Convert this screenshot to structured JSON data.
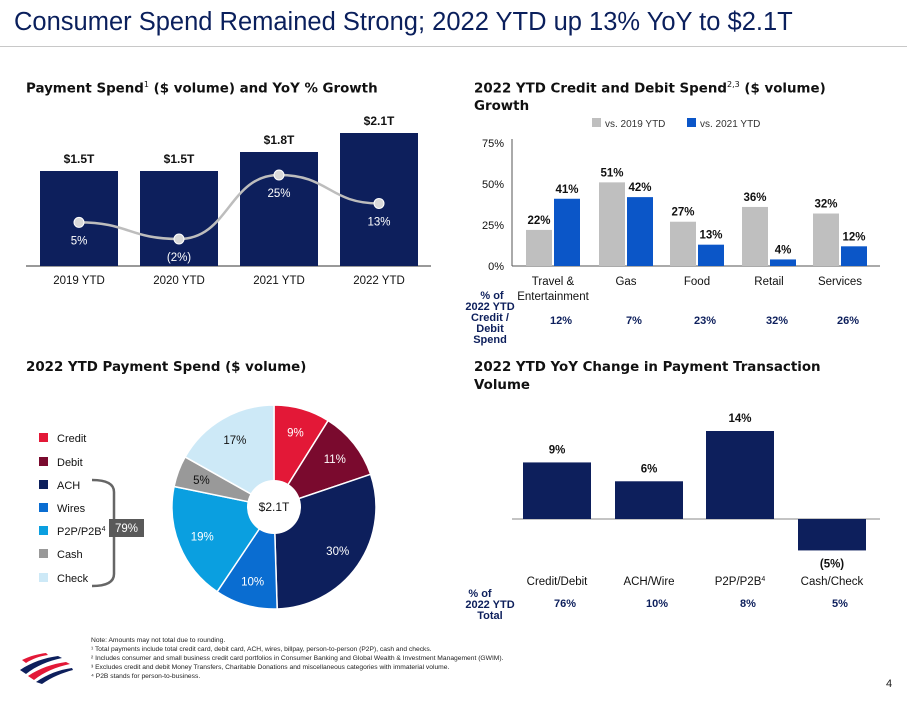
{
  "title": "Consumer Spend Remained Strong; 2022 YTD up 13% YoY to $2.1T",
  "page_number": "4",
  "colors": {
    "navy": "#0d1f5c",
    "blue": "#0b56c8",
    "gray": "#bfbfbf",
    "line": "#bdbdbd",
    "credit": "#e31837",
    "debit": "#7a0a2e",
    "ach": "#0d1f5c",
    "wires": "#0a6dd1",
    "p2p": "#0a9fe0",
    "cash": "#999999",
    "check": "#cde9f7"
  },
  "panel1": {
    "title_main": "Payment Spend",
    "title_sup": "1",
    "title_rest": " ($ volume) and YoY % Growth"
  },
  "panel2": {
    "title_line1": "2022 YTD Credit and Debit Spend",
    "title_sup": "2,3",
    "title_rest": " ($ volume)",
    "title_line2": "Growth",
    "share_label_lines": [
      "% of",
      "2022 YTD",
      "Credit /",
      "Debit",
      "Spend"
    ]
  },
  "panel3": {
    "title": "2022 YTD Payment Spend ($ volume)",
    "center_label": "$2.1T",
    "bracket_label": "79%"
  },
  "panel4": {
    "title_line1": "2022 YTD YoY Change in Payment Transaction",
    "title_line2": "Volume",
    "share_label_lines": [
      "% of",
      "2022 YTD",
      "Total"
    ]
  },
  "footnotes": [
    "Note: Amounts may not total due to rounding.",
    "¹ Total payments include total credit card, debit card, ACH, wires, billpay, person-to-person (P2P), cash and checks.",
    "² Includes consumer and small business credit card portfolios in Consumer Banking and Global Wealth & Investment Management (GWIM).",
    "³ Excludes credit and debit Money Transfers, Charitable Donations and miscellaneous categories with immaterial volume.",
    "⁴ P2B stands for person-to-business."
  ],
  "chart_data": [
    {
      "type": "bar",
      "categories": [
        "2019 YTD",
        "2020 YTD",
        "2021 YTD",
        "2022 YTD"
      ],
      "series": [
        {
          "values": [
            1.5,
            1.5,
            1.8,
            2.1
          ],
          "labels": [
            "$1.5T",
            "$1.5T",
            "$1.8T",
            "$2.1T"
          ]
        },
        {
          "type": "line",
          "values": [
            5,
            -2,
            25,
            13
          ],
          "labels": [
            "5%",
            "(2%)",
            "25%",
            "13%"
          ]
        }
      ],
      "ylim": [
        0,
        2.1
      ]
    },
    {
      "type": "bar",
      "categories": [
        "Travel & Entertainment",
        "Gas",
        "Food",
        "Retail",
        "Services"
      ],
      "series": [
        {
          "name": "vs. 2019 YTD",
          "values": [
            22,
            51,
            27,
            36,
            32
          ],
          "labels": [
            "22%",
            "51%",
            "27%",
            "36%",
            "32%"
          ]
        },
        {
          "name": "vs. 2021 YTD",
          "values": [
            41,
            42,
            13,
            4,
            12
          ],
          "labels": [
            "41%",
            "42%",
            "13%",
            "4%",
            "12%"
          ]
        }
      ],
      "yticks": [
        "0%",
        "25%",
        "50%",
        "75%"
      ],
      "ylim": [
        0,
        75
      ],
      "share": [
        "12%",
        "7%",
        "23%",
        "32%",
        "26%"
      ]
    },
    {
      "type": "pie",
      "categories": [
        "Credit",
        "Debit",
        "ACH",
        "Wires",
        "P2P/P2B",
        "Cash",
        "Check"
      ],
      "category_sup": [
        "",
        "",
        "",
        "",
        "4",
        "",
        ""
      ],
      "values": [
        9,
        11,
        30,
        10,
        19,
        5,
        17
      ],
      "labels": [
        "9%",
        "11%",
        "30%",
        "10%",
        "19%",
        "5%",
        "17%"
      ],
      "total": "$2.1T"
    },
    {
      "type": "bar",
      "categories": [
        "Credit/Debit",
        "ACH/Wire",
        "P2P/P2B",
        "Cash/Check"
      ],
      "category_sup": [
        "",
        "",
        "4",
        ""
      ],
      "values": [
        9,
        6,
        14,
        -5
      ],
      "labels": [
        "9%",
        "6%",
        "14%",
        "(5%)"
      ],
      "share": [
        "76%",
        "10%",
        "8%",
        "5%"
      ]
    }
  ]
}
